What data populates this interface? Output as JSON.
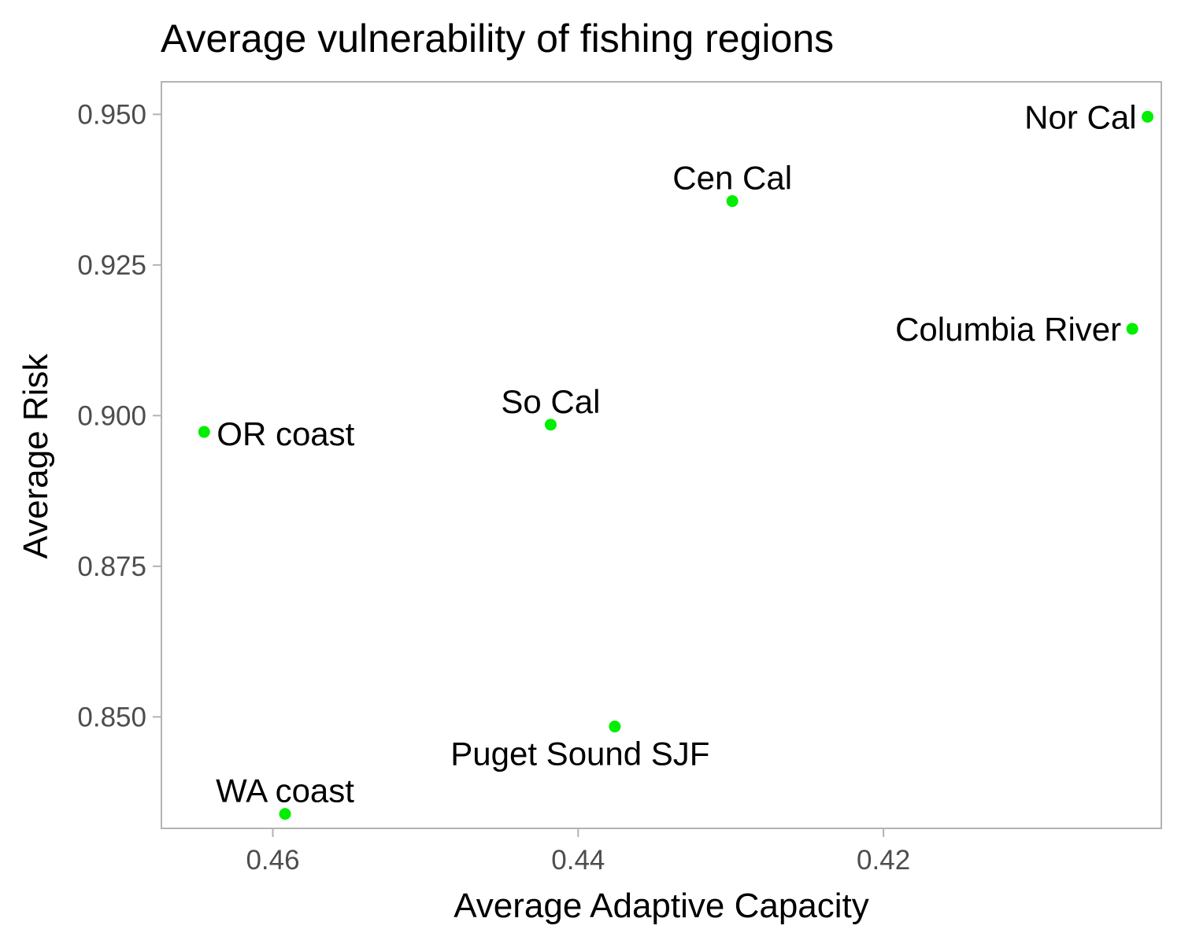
{
  "chart_data": {
    "type": "scatter",
    "title": "Average vulnerability of fishing regions",
    "xlabel": "Average Adaptive Capacity",
    "ylabel": "Average Risk",
    "x_reversed": true,
    "xlim": [
      0.4673,
      0.4018
    ],
    "ylim": [
      0.8315,
      0.9554
    ],
    "x_ticks": [
      {
        "value": 0.46,
        "label": "0.46"
      },
      {
        "value": 0.44,
        "label": "0.44"
      },
      {
        "value": 0.42,
        "label": "0.42"
      }
    ],
    "y_ticks": [
      {
        "value": 0.85,
        "label": "0.850"
      },
      {
        "value": 0.875,
        "label": "0.875"
      },
      {
        "value": 0.9,
        "label": "0.900"
      },
      {
        "value": 0.925,
        "label": "0.925"
      },
      {
        "value": 0.95,
        "label": "0.950"
      }
    ],
    "grid": false,
    "point_color": "#00ee00",
    "points": [
      {
        "label": "Nor Cal",
        "x": 0.4027,
        "y": 0.9496,
        "label_pos": "left"
      },
      {
        "label": "Cen Cal",
        "x": 0.4299,
        "y": 0.9356,
        "label_pos": "above"
      },
      {
        "label": "Columbia River",
        "x": 0.4037,
        "y": 0.9144,
        "label_pos": "left"
      },
      {
        "label": "So Cal",
        "x": 0.4418,
        "y": 0.8985,
        "label_pos": "above"
      },
      {
        "label": "OR coast",
        "x": 0.4645,
        "y": 0.8973,
        "label_pos": "right"
      },
      {
        "label": "Puget Sound SJF",
        "x": 0.4376,
        "y": 0.8484,
        "label_pos": "below"
      },
      {
        "label": "WA coast",
        "x": 0.4592,
        "y": 0.8339,
        "label_pos": "above"
      }
    ]
  }
}
